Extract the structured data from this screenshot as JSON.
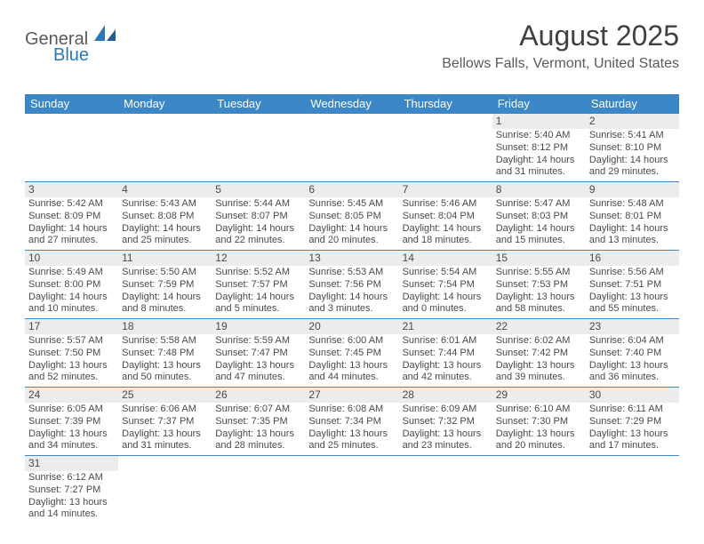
{
  "brand": {
    "general": "General",
    "blue": "Blue"
  },
  "title": "August 2025",
  "subtitle": "Bellows Falls, Vermont, United States",
  "colors": {
    "header_bg": "#3b87c8",
    "header_fg": "#ffffff",
    "daynum_bg": "#ececec",
    "rule": "#3b87c8",
    "text": "#4a4a4a"
  },
  "dow": [
    "Sunday",
    "Monday",
    "Tuesday",
    "Wednesday",
    "Thursday",
    "Friday",
    "Saturday"
  ],
  "weeks": [
    [
      null,
      null,
      null,
      null,
      null,
      {
        "n": "1",
        "sunrise": "5:40 AM",
        "sunset": "8:12 PM",
        "dl": "14 hours and 31 minutes."
      },
      {
        "n": "2",
        "sunrise": "5:41 AM",
        "sunset": "8:10 PM",
        "dl": "14 hours and 29 minutes."
      }
    ],
    [
      {
        "n": "3",
        "sunrise": "5:42 AM",
        "sunset": "8:09 PM",
        "dl": "14 hours and 27 minutes."
      },
      {
        "n": "4",
        "sunrise": "5:43 AM",
        "sunset": "8:08 PM",
        "dl": "14 hours and 25 minutes."
      },
      {
        "n": "5",
        "sunrise": "5:44 AM",
        "sunset": "8:07 PM",
        "dl": "14 hours and 22 minutes."
      },
      {
        "n": "6",
        "sunrise": "5:45 AM",
        "sunset": "8:05 PM",
        "dl": "14 hours and 20 minutes."
      },
      {
        "n": "7",
        "sunrise": "5:46 AM",
        "sunset": "8:04 PM",
        "dl": "14 hours and 18 minutes."
      },
      {
        "n": "8",
        "sunrise": "5:47 AM",
        "sunset": "8:03 PM",
        "dl": "14 hours and 15 minutes."
      },
      {
        "n": "9",
        "sunrise": "5:48 AM",
        "sunset": "8:01 PM",
        "dl": "14 hours and 13 minutes."
      }
    ],
    [
      {
        "n": "10",
        "sunrise": "5:49 AM",
        "sunset": "8:00 PM",
        "dl": "14 hours and 10 minutes."
      },
      {
        "n": "11",
        "sunrise": "5:50 AM",
        "sunset": "7:59 PM",
        "dl": "14 hours and 8 minutes."
      },
      {
        "n": "12",
        "sunrise": "5:52 AM",
        "sunset": "7:57 PM",
        "dl": "14 hours and 5 minutes."
      },
      {
        "n": "13",
        "sunrise": "5:53 AM",
        "sunset": "7:56 PM",
        "dl": "14 hours and 3 minutes."
      },
      {
        "n": "14",
        "sunrise": "5:54 AM",
        "sunset": "7:54 PM",
        "dl": "14 hours and 0 minutes."
      },
      {
        "n": "15",
        "sunrise": "5:55 AM",
        "sunset": "7:53 PM",
        "dl": "13 hours and 58 minutes."
      },
      {
        "n": "16",
        "sunrise": "5:56 AM",
        "sunset": "7:51 PM",
        "dl": "13 hours and 55 minutes."
      }
    ],
    [
      {
        "n": "17",
        "sunrise": "5:57 AM",
        "sunset": "7:50 PM",
        "dl": "13 hours and 52 minutes."
      },
      {
        "n": "18",
        "sunrise": "5:58 AM",
        "sunset": "7:48 PM",
        "dl": "13 hours and 50 minutes."
      },
      {
        "n": "19",
        "sunrise": "5:59 AM",
        "sunset": "7:47 PM",
        "dl": "13 hours and 47 minutes."
      },
      {
        "n": "20",
        "sunrise": "6:00 AM",
        "sunset": "7:45 PM",
        "dl": "13 hours and 44 minutes."
      },
      {
        "n": "21",
        "sunrise": "6:01 AM",
        "sunset": "7:44 PM",
        "dl": "13 hours and 42 minutes."
      },
      {
        "n": "22",
        "sunrise": "6:02 AM",
        "sunset": "7:42 PM",
        "dl": "13 hours and 39 minutes."
      },
      {
        "n": "23",
        "sunrise": "6:04 AM",
        "sunset": "7:40 PM",
        "dl": "13 hours and 36 minutes."
      }
    ],
    [
      {
        "n": "24",
        "sunrise": "6:05 AM",
        "sunset": "7:39 PM",
        "dl": "13 hours and 34 minutes."
      },
      {
        "n": "25",
        "sunrise": "6:06 AM",
        "sunset": "7:37 PM",
        "dl": "13 hours and 31 minutes."
      },
      {
        "n": "26",
        "sunrise": "6:07 AM",
        "sunset": "7:35 PM",
        "dl": "13 hours and 28 minutes."
      },
      {
        "n": "27",
        "sunrise": "6:08 AM",
        "sunset": "7:34 PM",
        "dl": "13 hours and 25 minutes."
      },
      {
        "n": "28",
        "sunrise": "6:09 AM",
        "sunset": "7:32 PM",
        "dl": "13 hours and 23 minutes."
      },
      {
        "n": "29",
        "sunrise": "6:10 AM",
        "sunset": "7:30 PM",
        "dl": "13 hours and 20 minutes."
      },
      {
        "n": "30",
        "sunrise": "6:11 AM",
        "sunset": "7:29 PM",
        "dl": "13 hours and 17 minutes."
      }
    ],
    [
      {
        "n": "31",
        "sunrise": "6:12 AM",
        "sunset": "7:27 PM",
        "dl": "13 hours and 14 minutes."
      },
      null,
      null,
      null,
      null,
      null,
      null
    ]
  ],
  "labels": {
    "sunrise": "Sunrise: ",
    "sunset": "Sunset: ",
    "daylight": "Daylight: "
  }
}
